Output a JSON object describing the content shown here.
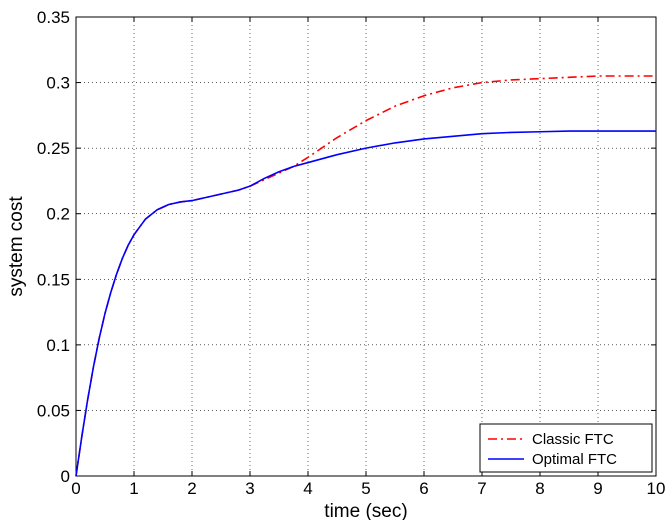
{
  "chart_data": {
    "type": "line",
    "xlabel": "time (sec)",
    "ylabel": "system cost",
    "xlim": [
      0,
      10
    ],
    "ylim": [
      0,
      0.35
    ],
    "x_ticks": [
      "0",
      "1",
      "2",
      "3",
      "4",
      "5",
      "6",
      "7",
      "8",
      "9",
      "10"
    ],
    "y_ticks": [
      "0",
      "0.05",
      "0.1",
      "0.15",
      "0.2",
      "0.25",
      "0.3",
      "0.35"
    ],
    "grid": true,
    "legend_position": "bottom-right",
    "series": [
      {
        "name": "Classic FTC",
        "color": "#ff0000",
        "style": "dash-dot",
        "x": [
          0,
          0.1,
          0.2,
          0.3,
          0.4,
          0.5,
          0.6,
          0.7,
          0.8,
          0.9,
          1.0,
          1.2,
          1.4,
          1.6,
          1.8,
          2.0,
          2.2,
          2.4,
          2.6,
          2.8,
          3.0,
          3.25,
          3.5,
          3.75,
          4.0,
          4.5,
          5.0,
          5.5,
          6.0,
          6.5,
          7.0,
          7.5,
          8.0,
          8.5,
          9.0,
          9.5,
          10.0
        ],
        "y": [
          0,
          0.03,
          0.058,
          0.083,
          0.105,
          0.124,
          0.14,
          0.154,
          0.166,
          0.176,
          0.184,
          0.196,
          0.203,
          0.207,
          0.209,
          0.21,
          0.212,
          0.214,
          0.216,
          0.218,
          0.221,
          0.226,
          0.231,
          0.236,
          0.243,
          0.258,
          0.271,
          0.282,
          0.29,
          0.296,
          0.3,
          0.302,
          0.303,
          0.304,
          0.305,
          0.305,
          0.305
        ]
      },
      {
        "name": "Optimal FTC",
        "color": "#0000ff",
        "style": "solid",
        "x": [
          0,
          0.1,
          0.2,
          0.3,
          0.4,
          0.5,
          0.6,
          0.7,
          0.8,
          0.9,
          1.0,
          1.2,
          1.4,
          1.6,
          1.8,
          2.0,
          2.2,
          2.4,
          2.6,
          2.8,
          3.0,
          3.25,
          3.5,
          3.75,
          4.0,
          4.5,
          5.0,
          5.5,
          6.0,
          6.5,
          7.0,
          7.5,
          8.0,
          8.5,
          9.0,
          9.5,
          10.0
        ],
        "y": [
          0,
          0.03,
          0.058,
          0.083,
          0.105,
          0.124,
          0.14,
          0.154,
          0.166,
          0.176,
          0.184,
          0.196,
          0.203,
          0.207,
          0.209,
          0.21,
          0.212,
          0.214,
          0.216,
          0.218,
          0.221,
          0.227,
          0.232,
          0.236,
          0.239,
          0.245,
          0.25,
          0.254,
          0.257,
          0.259,
          0.261,
          0.262,
          0.2625,
          0.263,
          0.263,
          0.263,
          0.263
        ]
      }
    ]
  }
}
